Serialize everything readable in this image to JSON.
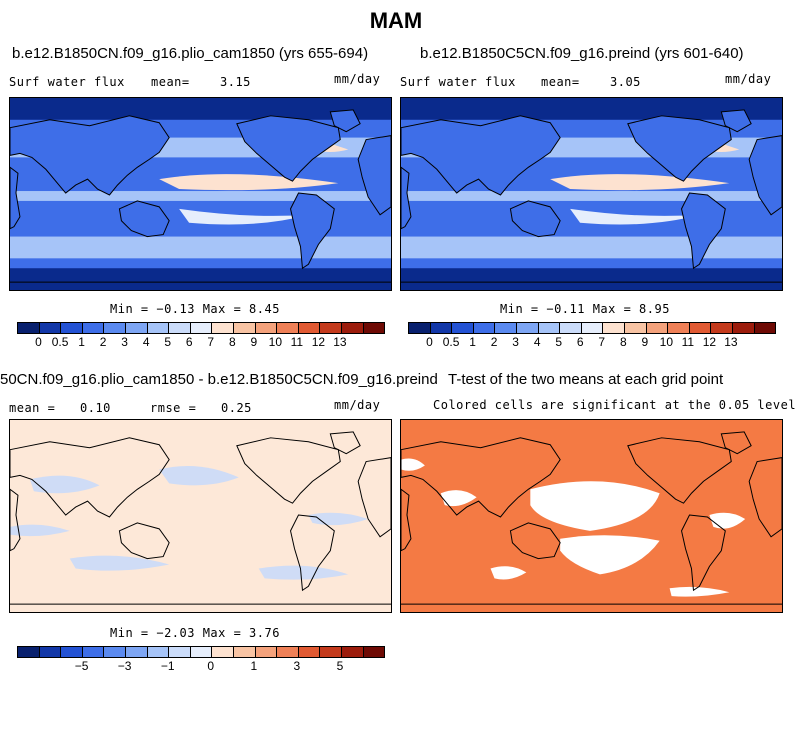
{
  "page_title": "MAM",
  "panels": {
    "top_left": {
      "title": "b.e12.B1850CN.f09_g16.plio_cam1850 (yrs 655-694)",
      "variable": "Surf water flux",
      "mean_label": "mean=",
      "mean_value": "3.15",
      "units": "mm/day",
      "min_max": "Min = −0.13 Max =   8.45"
    },
    "top_right": {
      "title": "b.e12.B1850C5CN.f09_g16.preind (yrs 601-640)",
      "variable": "Surf water flux",
      "mean_label": "mean=",
      "mean_value": "3.05",
      "units": "mm/day",
      "min_max": "Min = −0.11 Max =   8.95"
    },
    "bottom_left": {
      "title": "50CN.f09_g16.plio_cam1850 - b.e12.B1850C5CN.f09_g16.preind",
      "mean_label": "mean =",
      "mean_value": "0.10",
      "rmse_label": "rmse =",
      "rmse_value": "0.25",
      "units": "mm/day",
      "min_max": "Min = −2.03 Max =   3.76"
    },
    "bottom_right": {
      "title": "T-test of the two means at each grid point",
      "subtitle": "Colored cells are significant at the 0.05 level"
    }
  },
  "colorbars": {
    "abs_colors": [
      "#08206e",
      "#1237a8",
      "#2352d4",
      "#3e6ee8",
      "#5b8af0",
      "#7ea6f4",
      "#a6c4f8",
      "#cbdcfa",
      "#e6eefc",
      "#fde2d0",
      "#f8c4a4",
      "#f4a27c",
      "#ef8057",
      "#e15a33",
      "#c43a1c",
      "#9c1c0c",
      "#6e0a04"
    ],
    "abs_labels": [
      "0",
      "0.5",
      "1",
      "2",
      "3",
      "4",
      "5",
      "6",
      "7",
      "8",
      "9",
      "10",
      "11",
      "12",
      "13"
    ],
    "diff_colors": [
      "#08206e",
      "#1237a8",
      "#2352d4",
      "#3e6ee8",
      "#5b8af0",
      "#7ea6f4",
      "#a6c4f8",
      "#cbdcfa",
      "#e6eefc",
      "#fde2d0",
      "#f8c4a4",
      "#f4a27c",
      "#ef8057",
      "#e15a33",
      "#c43a1c",
      "#9c1c0c",
      "#6e0a04"
    ],
    "diff_labels": [
      "−5",
      "−3",
      "−1",
      "0",
      "1",
      "3",
      "5"
    ]
  },
  "colors": {
    "ocean_dark": "#0a2a8c",
    "abs_mid": "#3e6ee8",
    "abs_light": "#a6c4f8",
    "abs_pale": "#e6eefc",
    "abs_warm": "#fde2d0",
    "diff_base": "#fde8d8",
    "diff_blue": "#cfdcf6",
    "ttest_fill": "#f47a44",
    "coast": "#000000"
  },
  "chart_data": [
    {
      "type": "heatmap",
      "title": "b.e12.B1850CN.f09_g16.plio_cam1850 (yrs 655-694)",
      "variable": "Surf water flux",
      "units": "mm/day",
      "mean": 3.15,
      "min": -0.13,
      "max": 8.45,
      "colorbar_levels": [
        0,
        0.5,
        1,
        2,
        3,
        4,
        5,
        6,
        7,
        8,
        9,
        10,
        11,
        12,
        13
      ]
    },
    {
      "type": "heatmap",
      "title": "b.e12.B1850C5CN.f09_g16.preind (yrs 601-640)",
      "variable": "Surf water flux",
      "units": "mm/day",
      "mean": 3.05,
      "min": -0.11,
      "max": 8.95,
      "colorbar_levels": [
        0,
        0.5,
        1,
        2,
        3,
        4,
        5,
        6,
        7,
        8,
        9,
        10,
        11,
        12,
        13
      ]
    },
    {
      "type": "heatmap",
      "title": "50CN.f09_g16.plio_cam1850 - b.e12.B1850C5CN.f09_g16.preind",
      "units": "mm/day",
      "mean": 0.1,
      "rmse": 0.25,
      "min": -2.03,
      "max": 3.76,
      "colorbar_levels": [
        -5,
        -3,
        -1,
        0,
        1,
        3,
        5
      ]
    },
    {
      "type": "heatmap",
      "title": "T-test of the two means at each grid point",
      "subtitle": "Colored cells are significant at the 0.05 level",
      "significance_level": 0.05
    }
  ]
}
